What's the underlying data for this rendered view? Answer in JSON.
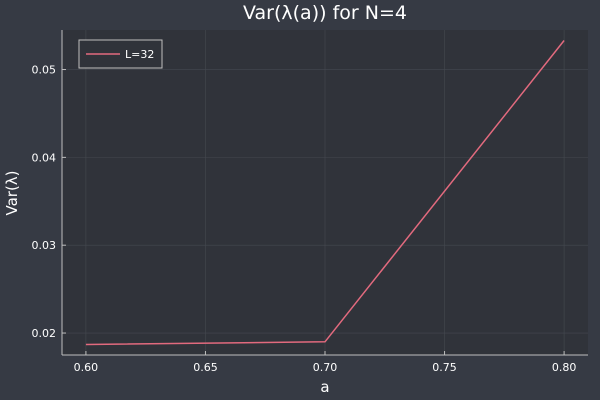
{
  "chart_data": {
    "type": "line",
    "title": "Var(λ(a)) for N=4",
    "xlabel": "a",
    "ylabel": "Var(λ)",
    "x": [
      0.6,
      0.7,
      0.8
    ],
    "series": [
      {
        "name": "L=32",
        "values": [
          0.0187,
          0.019,
          0.0533
        ],
        "color": "#e26a7e"
      }
    ],
    "xlim": [
      0.59,
      0.81
    ],
    "ylim": [
      0.0175,
      0.0545
    ],
    "xticks": [
      0.6,
      0.65,
      0.7,
      0.75,
      0.8
    ],
    "xtick_labels": [
      "0.60",
      "0.65",
      "0.70",
      "0.75",
      "0.80"
    ],
    "yticks": [
      0.02,
      0.03,
      0.04,
      0.05
    ],
    "ytick_labels": [
      "0.02",
      "0.03",
      "0.04",
      "0.05"
    ],
    "grid": true,
    "legend": "top-left",
    "colors": {
      "background": "#363a44",
      "plot_area": "#30333a",
      "axis": "#bfbfbf",
      "grid": "#454950",
      "text": "#ffffff"
    }
  }
}
